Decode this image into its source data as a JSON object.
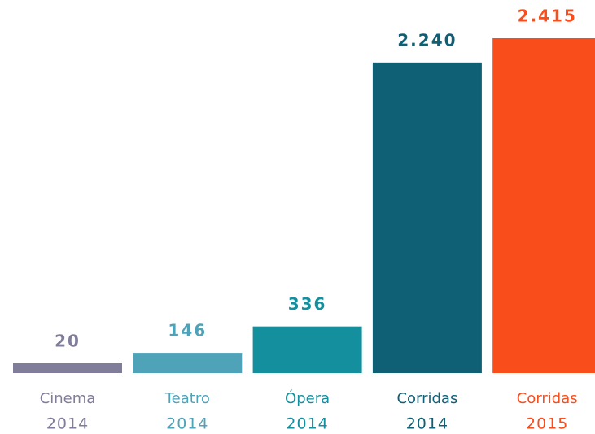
{
  "chart_data": {
    "type": "bar",
    "categories": [
      [
        "Cinema",
        "2014"
      ],
      [
        "Teatro",
        "2014"
      ],
      [
        "Ópera",
        "2014"
      ],
      [
        "Corridas",
        "2014"
      ],
      [
        "Corridas",
        "2015"
      ]
    ],
    "values": [
      20,
      146,
      336,
      2240,
      2415
    ],
    "value_labels": [
      "20",
      "146",
      "336",
      "2.240",
      "2.415"
    ],
    "colors": [
      "#7f7d99",
      "#4fa3b9",
      "#138f9e",
      "#0f5f75",
      "#f94e1c"
    ]
  }
}
